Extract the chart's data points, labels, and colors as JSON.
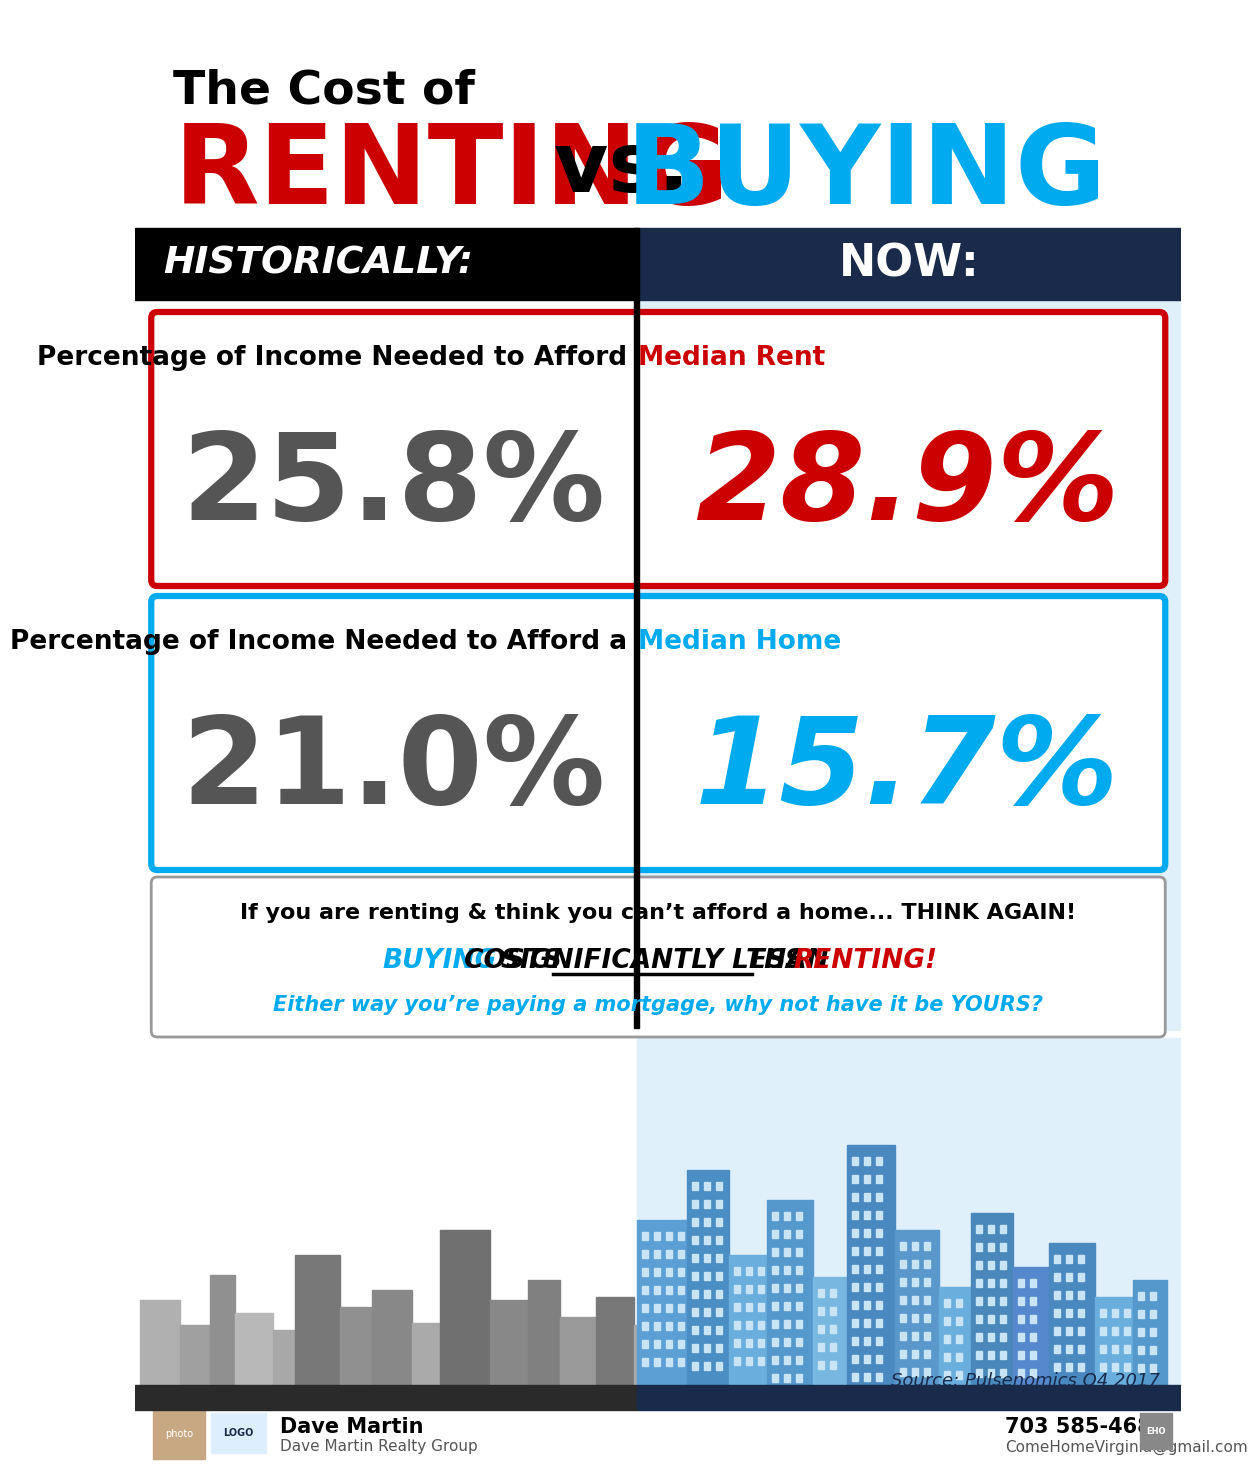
{
  "title_line1": "The Cost of",
  "title_renting": "RENTING",
  "title_vs": " vs. ",
  "title_buying": "BUYING",
  "header_left": "HISTORICALLY:",
  "header_right": "NOW:",
  "rent_label": "Percentage of Income Needed to Afford ",
  "rent_label_colored": "Median Rent",
  "rent_hist": "25.8%",
  "rent_now": "28.9%",
  "home_label": "Percentage of Income Needed to Afford a ",
  "home_label_colored": "Median Home",
  "home_hist": "21.0%",
  "home_now": "15.7%",
  "box1_line1": "If you are renting & think you can’t afford a home... THINK AGAIN!",
  "box1_line2a": "BUYING",
  "box1_line2b": " COSTS ",
  "box1_line2c": "SIGNIFICANTLY LESS",
  "box1_line2d": " THAN ",
  "box1_line2e": "RENTING!",
  "box1_line3": "Either way you’re paying a mortgage, why not have it be YOURS?",
  "source_text": "Source: Pulsenomics Q4 2017",
  "footer_name": "Dave Martin",
  "footer_company": "Dave Martin Realty Group",
  "footer_phone": "703 585-4687",
  "footer_email": "ComeHomeVirginia@gmail.com",
  "color_red": "#cc0000",
  "color_blue": "#00aaee",
  "color_dark_navy": "#1a2a4a",
  "color_black": "#000000",
  "color_dark_gray": "#555555",
  "color_white": "#ffffff",
  "color_light_blue_bg": "#cce8f8",
  "color_very_light_blue": "#dff0fa"
}
